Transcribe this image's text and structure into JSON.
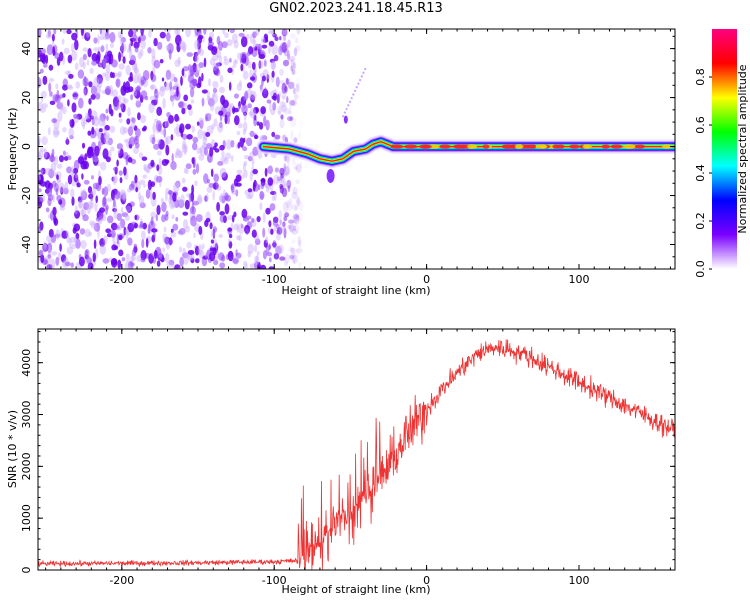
{
  "title": "GN02.2023.241.18.45.R13",
  "spectrogram": {
    "xlabel": "Height of straight line (km)",
    "ylabel": "Frequency (Hz)",
    "xlim": [
      -255,
      163
    ],
    "ylim": [
      -50,
      48
    ],
    "x_ticks": [
      -200,
      -100,
      0,
      100
    ],
    "y_ticks": [
      -40,
      -20,
      0,
      20,
      40
    ],
    "colorbar": {
      "label": "Normalized spectral amplitude",
      "ticks": [
        "0.0",
        "0.2",
        "0.4",
        "0.6",
        "0.8"
      ],
      "range": [
        0,
        1
      ],
      "colormap": [
        "#ffffff",
        "#7a00ff",
        "#0000ff",
        "#00ffff",
        "#00ff00",
        "#ffff00",
        "#ff0000",
        "#ff0080"
      ]
    },
    "noise_region_x": [
      -255,
      -88
    ],
    "signal_track": [
      {
        "x": -107,
        "f": 0
      },
      {
        "x": -90,
        "f": -1
      },
      {
        "x": -78,
        "f": -3
      },
      {
        "x": -70,
        "f": -5
      },
      {
        "x": -62,
        "f": -6
      },
      {
        "x": -55,
        "f": -5
      },
      {
        "x": -48,
        "f": -2
      },
      {
        "x": -40,
        "f": -1
      },
      {
        "x": -35,
        "f": 1
      },
      {
        "x": -30,
        "f": 2
      },
      {
        "x": -22,
        "f": 0
      },
      {
        "x": 0,
        "f": 0
      },
      {
        "x": 163,
        "f": 0
      }
    ]
  },
  "snr": {
    "xlabel": "Height of straight line (km)",
    "ylabel": "SNR (10 * v/v)",
    "xlim": [
      -255,
      163
    ],
    "ylim": [
      0,
      4650
    ],
    "x_ticks": [
      -200,
      -100,
      0,
      100
    ],
    "y_ticks": [
      0,
      1000,
      2000,
      3000,
      4000
    ],
    "series_color": "#ee3333"
  },
  "chart_data": [
    {
      "type": "heatmap",
      "title": "GN02.2023.241.18.45.R13",
      "xlabel": "Height of straight line (km)",
      "ylabel": "Frequency (Hz)",
      "xlim": [
        -255,
        163
      ],
      "ylim": [
        -50,
        48
      ],
      "colorbar_label": "Normalized spectral amplitude",
      "colorbar_range": [
        0,
        1
      ],
      "series": [
        {
          "x": [
            -107,
            -90,
            -78,
            -70,
            -62,
            -55,
            -48,
            -40,
            -35,
            -30,
            -22,
            0,
            163
          ],
          "y": [
            0,
            -1,
            -3,
            -5,
            -6,
            -5,
            -2,
            -1,
            1,
            2,
            0,
            0,
            0
          ]
        }
      ]
    },
    {
      "type": "line",
      "xlabel": "Height of straight line (km)",
      "ylabel": "SNR (10 * v/v)",
      "xlim": [
        -255,
        163
      ],
      "ylim": [
        0,
        4650
      ],
      "series": [
        {
          "x": [
            -255,
            -200,
            -150,
            -100,
            -85,
            -75,
            -65,
            -55,
            -45,
            -35,
            -25,
            -15,
            -5,
            5,
            15,
            25,
            35,
            45,
            55,
            65,
            75,
            85,
            95,
            105,
            115,
            125,
            135,
            145,
            155,
            163
          ],
          "y": [
            120,
            130,
            140,
            160,
            180,
            350,
            650,
            1000,
            1350,
            1600,
            2000,
            2500,
            2900,
            3300,
            3650,
            3950,
            4200,
            4300,
            4250,
            4150,
            4000,
            3850,
            3700,
            3550,
            3400,
            3250,
            3100,
            2950,
            2800,
            2700
          ]
        }
      ]
    }
  ]
}
